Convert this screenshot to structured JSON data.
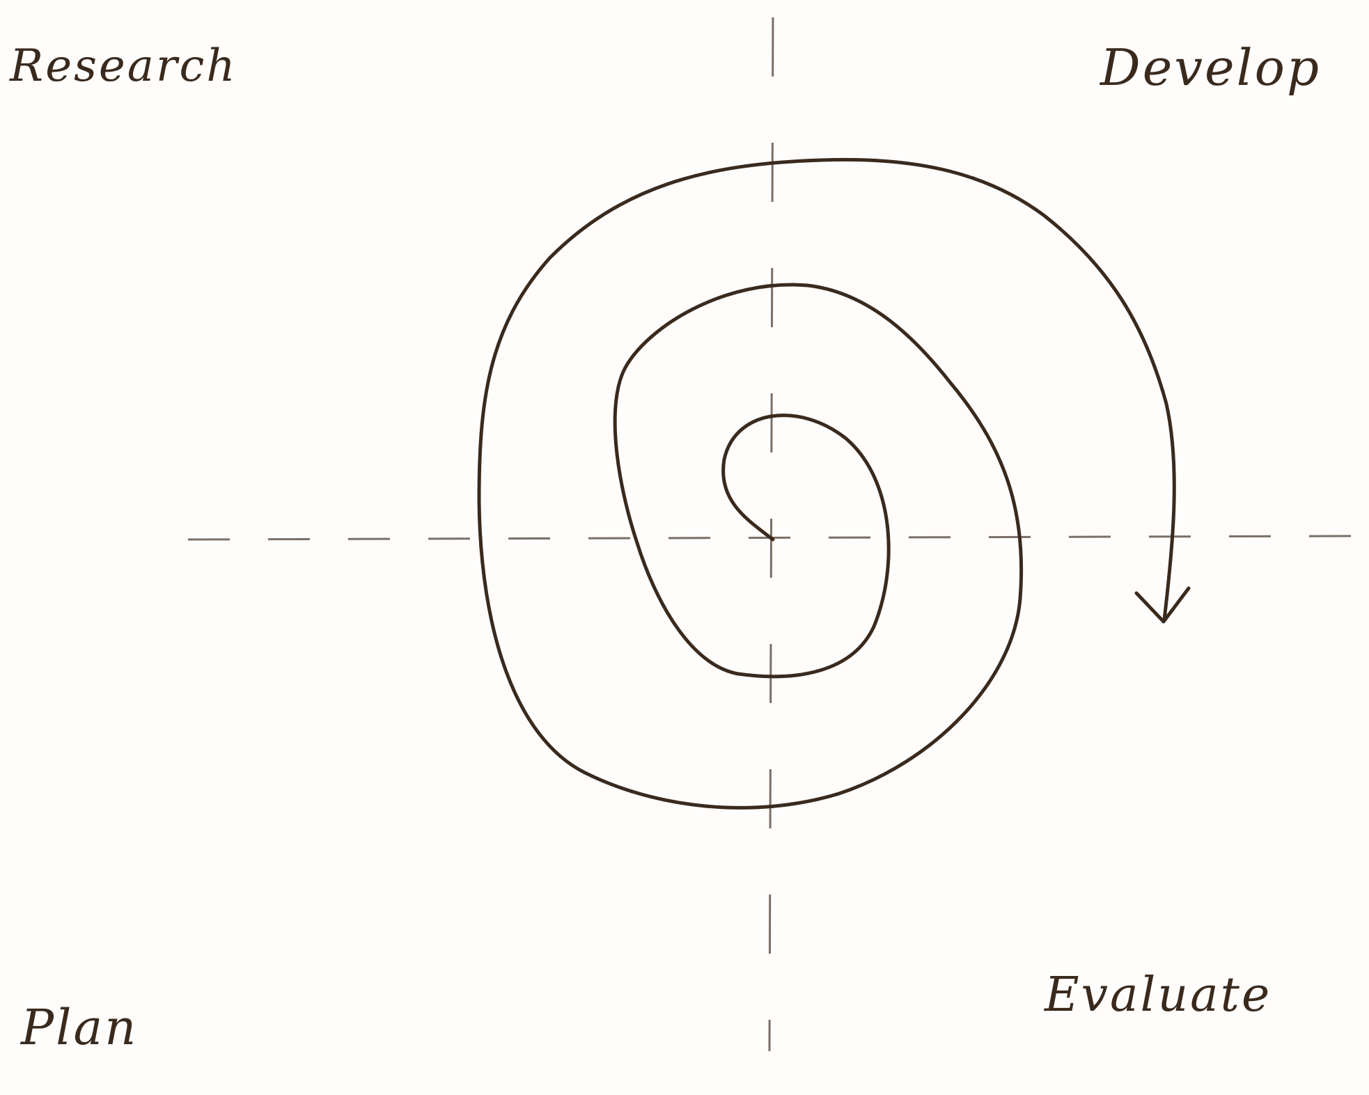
{
  "quadrants": {
    "top_left": "Research",
    "top_right": "Develop",
    "bottom_left": "Plan",
    "bottom_right": "Evaluate"
  },
  "colors": {
    "ink": "#3a2a1e",
    "axis": "#7a6f66",
    "paper": "#fefdfb"
  },
  "shapes": [
    "dashed-vertical-axis",
    "dashed-horizontal-axis",
    "spiral",
    "arrowhead"
  ]
}
